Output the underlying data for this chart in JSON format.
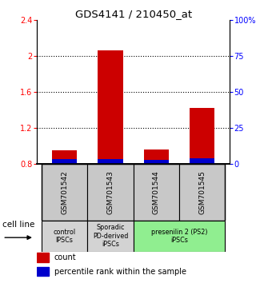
{
  "title": "GDS4141 / 210450_at",
  "samples": [
    "GSM701542",
    "GSM701543",
    "GSM701544",
    "GSM701545"
  ],
  "red_values": [
    0.955,
    2.065,
    0.965,
    1.42
  ],
  "blue_values": [
    0.855,
    0.855,
    0.845,
    0.86
  ],
  "baseline": 0.8,
  "ylim_left": [
    0.8,
    2.4
  ],
  "ylim_right": [
    0,
    100
  ],
  "yticks_left": [
    0.8,
    1.2,
    1.6,
    2.0,
    2.4
  ],
  "yticks_right": [
    0,
    25,
    50,
    75,
    100
  ],
  "ytick_labels_left": [
    "0.8",
    "1.2",
    "1.6",
    "2",
    "2.4"
  ],
  "ytick_labels_right": [
    "0",
    "25",
    "50",
    "75",
    "100%"
  ],
  "dotted_lines": [
    1.2,
    1.6,
    2.0
  ],
  "cell_line_groups": [
    {
      "label": "control\nIPSCs",
      "color": "#d3d3d3",
      "span": [
        0,
        1
      ]
    },
    {
      "label": "Sporadic\nPD-derived\niPSCs",
      "color": "#d3d3d3",
      "span": [
        1,
        2
      ]
    },
    {
      "label": "presenilin 2 (PS2)\niPSCs",
      "color": "#90EE90",
      "span": [
        2,
        4
      ]
    }
  ],
  "legend_red_label": "count",
  "legend_blue_label": "percentile rank within the sample",
  "cell_line_label": "cell line",
  "bar_color_red": "#CC0000",
  "bar_color_blue": "#0000CC",
  "bar_width": 0.55,
  "sample_box_color": "#c8c8c8",
  "background_color": "#ffffff"
}
